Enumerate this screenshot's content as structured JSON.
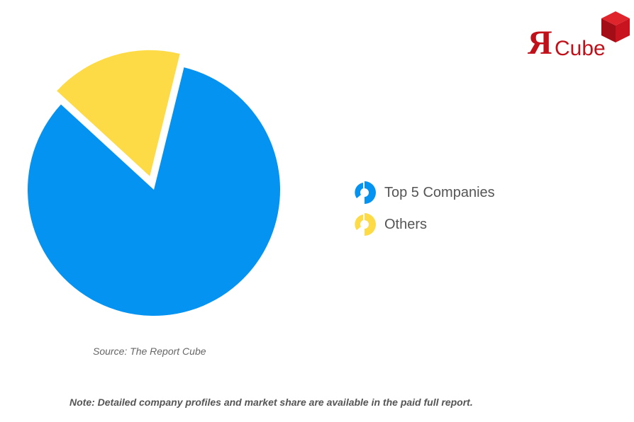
{
  "chart_data": {
    "type": "pie",
    "title": "",
    "categories": [
      "Top 5 Companies",
      "Others"
    ],
    "values": [
      83,
      17
    ],
    "colors": [
      "#0593f2",
      "#fddb46"
    ],
    "exploded": [
      "Others"
    ],
    "legend_position": "right"
  },
  "legend": {
    "items": [
      {
        "label": "Top 5 Companies",
        "color": "#0593f2"
      },
      {
        "label": "Others",
        "color": "#fddb46"
      }
    ]
  },
  "source_text": "Source: The Report Cube",
  "note_text": "Note: Detailed company profiles and market share are available in the paid full report.",
  "logo": {
    "mark": "Я",
    "word": "Cube",
    "color": "#c0111a"
  }
}
